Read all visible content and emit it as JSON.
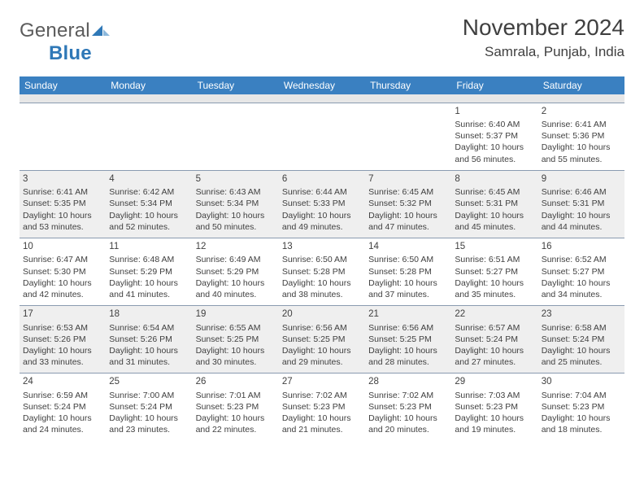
{
  "logo": {
    "word1": "General",
    "word2": "Blue"
  },
  "title": "November 2024",
  "location": "Samrala, Punjab, India",
  "weekdays": [
    "Sunday",
    "Monday",
    "Tuesday",
    "Wednesday",
    "Thursday",
    "Friday",
    "Saturday"
  ],
  "colors": {
    "header_bg": "#3a80c1",
    "header_text": "#ffffff",
    "shaded_row": "#efefef",
    "spacer": "#e7e7e7",
    "border": "#8a9bb0",
    "logo_blue": "#2f78b7",
    "text": "#404040"
  },
  "typography": {
    "body_pt": 10.5,
    "title_pt": 28,
    "location_pt": 17,
    "weekday_pt": 12
  },
  "rows": [
    {
      "shaded": false,
      "cells": [
        null,
        null,
        null,
        null,
        null,
        {
          "day": "1",
          "sunrise": "Sunrise: 6:40 AM",
          "sunset": "Sunset: 5:37 PM",
          "daylight": "Daylight: 10 hours and 56 minutes."
        },
        {
          "day": "2",
          "sunrise": "Sunrise: 6:41 AM",
          "sunset": "Sunset: 5:36 PM",
          "daylight": "Daylight: 10 hours and 55 minutes."
        }
      ]
    },
    {
      "shaded": true,
      "cells": [
        {
          "day": "3",
          "sunrise": "Sunrise: 6:41 AM",
          "sunset": "Sunset: 5:35 PM",
          "daylight": "Daylight: 10 hours and 53 minutes."
        },
        {
          "day": "4",
          "sunrise": "Sunrise: 6:42 AM",
          "sunset": "Sunset: 5:34 PM",
          "daylight": "Daylight: 10 hours and 52 minutes."
        },
        {
          "day": "5",
          "sunrise": "Sunrise: 6:43 AM",
          "sunset": "Sunset: 5:34 PM",
          "daylight": "Daylight: 10 hours and 50 minutes."
        },
        {
          "day": "6",
          "sunrise": "Sunrise: 6:44 AM",
          "sunset": "Sunset: 5:33 PM",
          "daylight": "Daylight: 10 hours and 49 minutes."
        },
        {
          "day": "7",
          "sunrise": "Sunrise: 6:45 AM",
          "sunset": "Sunset: 5:32 PM",
          "daylight": "Daylight: 10 hours and 47 minutes."
        },
        {
          "day": "8",
          "sunrise": "Sunrise: 6:45 AM",
          "sunset": "Sunset: 5:31 PM",
          "daylight": "Daylight: 10 hours and 45 minutes."
        },
        {
          "day": "9",
          "sunrise": "Sunrise: 6:46 AM",
          "sunset": "Sunset: 5:31 PM",
          "daylight": "Daylight: 10 hours and 44 minutes."
        }
      ]
    },
    {
      "shaded": false,
      "cells": [
        {
          "day": "10",
          "sunrise": "Sunrise: 6:47 AM",
          "sunset": "Sunset: 5:30 PM",
          "daylight": "Daylight: 10 hours and 42 minutes."
        },
        {
          "day": "11",
          "sunrise": "Sunrise: 6:48 AM",
          "sunset": "Sunset: 5:29 PM",
          "daylight": "Daylight: 10 hours and 41 minutes."
        },
        {
          "day": "12",
          "sunrise": "Sunrise: 6:49 AM",
          "sunset": "Sunset: 5:29 PM",
          "daylight": "Daylight: 10 hours and 40 minutes."
        },
        {
          "day": "13",
          "sunrise": "Sunrise: 6:50 AM",
          "sunset": "Sunset: 5:28 PM",
          "daylight": "Daylight: 10 hours and 38 minutes."
        },
        {
          "day": "14",
          "sunrise": "Sunrise: 6:50 AM",
          "sunset": "Sunset: 5:28 PM",
          "daylight": "Daylight: 10 hours and 37 minutes."
        },
        {
          "day": "15",
          "sunrise": "Sunrise: 6:51 AM",
          "sunset": "Sunset: 5:27 PM",
          "daylight": "Daylight: 10 hours and 35 minutes."
        },
        {
          "day": "16",
          "sunrise": "Sunrise: 6:52 AM",
          "sunset": "Sunset: 5:27 PM",
          "daylight": "Daylight: 10 hours and 34 minutes."
        }
      ]
    },
    {
      "shaded": true,
      "cells": [
        {
          "day": "17",
          "sunrise": "Sunrise: 6:53 AM",
          "sunset": "Sunset: 5:26 PM",
          "daylight": "Daylight: 10 hours and 33 minutes."
        },
        {
          "day": "18",
          "sunrise": "Sunrise: 6:54 AM",
          "sunset": "Sunset: 5:26 PM",
          "daylight": "Daylight: 10 hours and 31 minutes."
        },
        {
          "day": "19",
          "sunrise": "Sunrise: 6:55 AM",
          "sunset": "Sunset: 5:25 PM",
          "daylight": "Daylight: 10 hours and 30 minutes."
        },
        {
          "day": "20",
          "sunrise": "Sunrise: 6:56 AM",
          "sunset": "Sunset: 5:25 PM",
          "daylight": "Daylight: 10 hours and 29 minutes."
        },
        {
          "day": "21",
          "sunrise": "Sunrise: 6:56 AM",
          "sunset": "Sunset: 5:25 PM",
          "daylight": "Daylight: 10 hours and 28 minutes."
        },
        {
          "day": "22",
          "sunrise": "Sunrise: 6:57 AM",
          "sunset": "Sunset: 5:24 PM",
          "daylight": "Daylight: 10 hours and 27 minutes."
        },
        {
          "day": "23",
          "sunrise": "Sunrise: 6:58 AM",
          "sunset": "Sunset: 5:24 PM",
          "daylight": "Daylight: 10 hours and 25 minutes."
        }
      ]
    },
    {
      "shaded": false,
      "cells": [
        {
          "day": "24",
          "sunrise": "Sunrise: 6:59 AM",
          "sunset": "Sunset: 5:24 PM",
          "daylight": "Daylight: 10 hours and 24 minutes."
        },
        {
          "day": "25",
          "sunrise": "Sunrise: 7:00 AM",
          "sunset": "Sunset: 5:24 PM",
          "daylight": "Daylight: 10 hours and 23 minutes."
        },
        {
          "day": "26",
          "sunrise": "Sunrise: 7:01 AM",
          "sunset": "Sunset: 5:23 PM",
          "daylight": "Daylight: 10 hours and 22 minutes."
        },
        {
          "day": "27",
          "sunrise": "Sunrise: 7:02 AM",
          "sunset": "Sunset: 5:23 PM",
          "daylight": "Daylight: 10 hours and 21 minutes."
        },
        {
          "day": "28",
          "sunrise": "Sunrise: 7:02 AM",
          "sunset": "Sunset: 5:23 PM",
          "daylight": "Daylight: 10 hours and 20 minutes."
        },
        {
          "day": "29",
          "sunrise": "Sunrise: 7:03 AM",
          "sunset": "Sunset: 5:23 PM",
          "daylight": "Daylight: 10 hours and 19 minutes."
        },
        {
          "day": "30",
          "sunrise": "Sunrise: 7:04 AM",
          "sunset": "Sunset: 5:23 PM",
          "daylight": "Daylight: 10 hours and 18 minutes."
        }
      ]
    }
  ]
}
